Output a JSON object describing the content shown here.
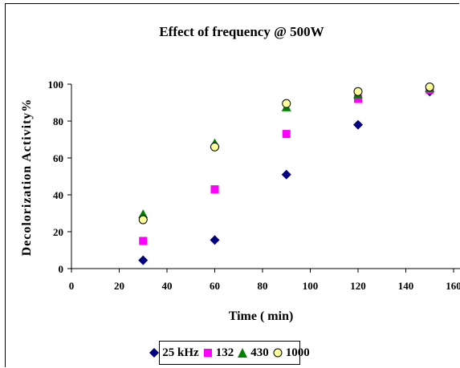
{
  "chart_data": {
    "type": "scatter",
    "title": "Effect of frequency @ 500W",
    "xlabel": "Time ( min)",
    "ylabel": "Decolorization Activity%",
    "xlim": [
      0,
      160
    ],
    "ylim": [
      0,
      100
    ],
    "xticks": [
      "0",
      "20",
      "40",
      "60",
      "80",
      "100",
      "120",
      "140",
      "160"
    ],
    "yticks": [
      "0",
      "20",
      "40",
      "60",
      "80",
      "100"
    ],
    "grid": false,
    "legend_position": "bottom",
    "series": [
      {
        "name": "25 kHz",
        "marker": "diamond",
        "color": "#000080",
        "x": [
          30,
          60,
          90,
          120,
          150
        ],
        "y": [
          4.5,
          15.5,
          51,
          78,
          96
        ]
      },
      {
        "name": "132",
        "marker": "square",
        "color": "#FF00FF",
        "x": [
          30,
          60,
          90,
          120,
          150
        ],
        "y": [
          15,
          43,
          73,
          92,
          97
        ]
      },
      {
        "name": "430",
        "marker": "triangle",
        "color": "#008000",
        "x": [
          30,
          60,
          90,
          120,
          150
        ],
        "y": [
          29.5,
          68,
          87.5,
          94.5,
          98
        ]
      },
      {
        "name": "1000",
        "marker": "circle",
        "color": "#FFFF99",
        "x": [
          30,
          60,
          90,
          120,
          150
        ],
        "y": [
          26.5,
          66,
          89.5,
          96,
          98.5
        ]
      }
    ]
  }
}
